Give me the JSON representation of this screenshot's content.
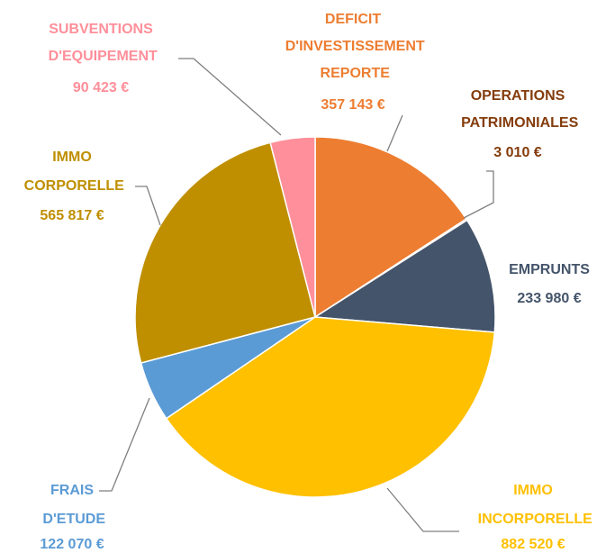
{
  "chart_data": {
    "type": "pie",
    "categories": [
      "DEFICIT D'INVESTISSEMENT REPORTE",
      "OPERATIONS PATRIMONIALES",
      "EMPRUNTS",
      "IMMO INCORPORELLE",
      "FRAIS D'ETUDE",
      "IMMO CORPORELLE",
      "SUBVENTIONS D'EQUIPEMENT"
    ],
    "values": [
      357143,
      3010,
      233980,
      882520,
      122070,
      565817,
      90423
    ],
    "value_labels": [
      "357 143 €",
      "3 010 €",
      "233 980 €",
      "882 520 €",
      "122 070 €",
      "565 817 €",
      "90 423 €"
    ],
    "colors": [
      "#ed7d31",
      "#843c0c",
      "#44546a",
      "#ffc000",
      "#5b9bd5",
      "#bf8f00",
      "#ff8f9a"
    ],
    "label_colors": [
      "#ed7d31",
      "#843c0c",
      "#44546a",
      "#ffc000",
      "#5b9bd5",
      "#bf8f00",
      "#ff8f9a"
    ]
  }
}
